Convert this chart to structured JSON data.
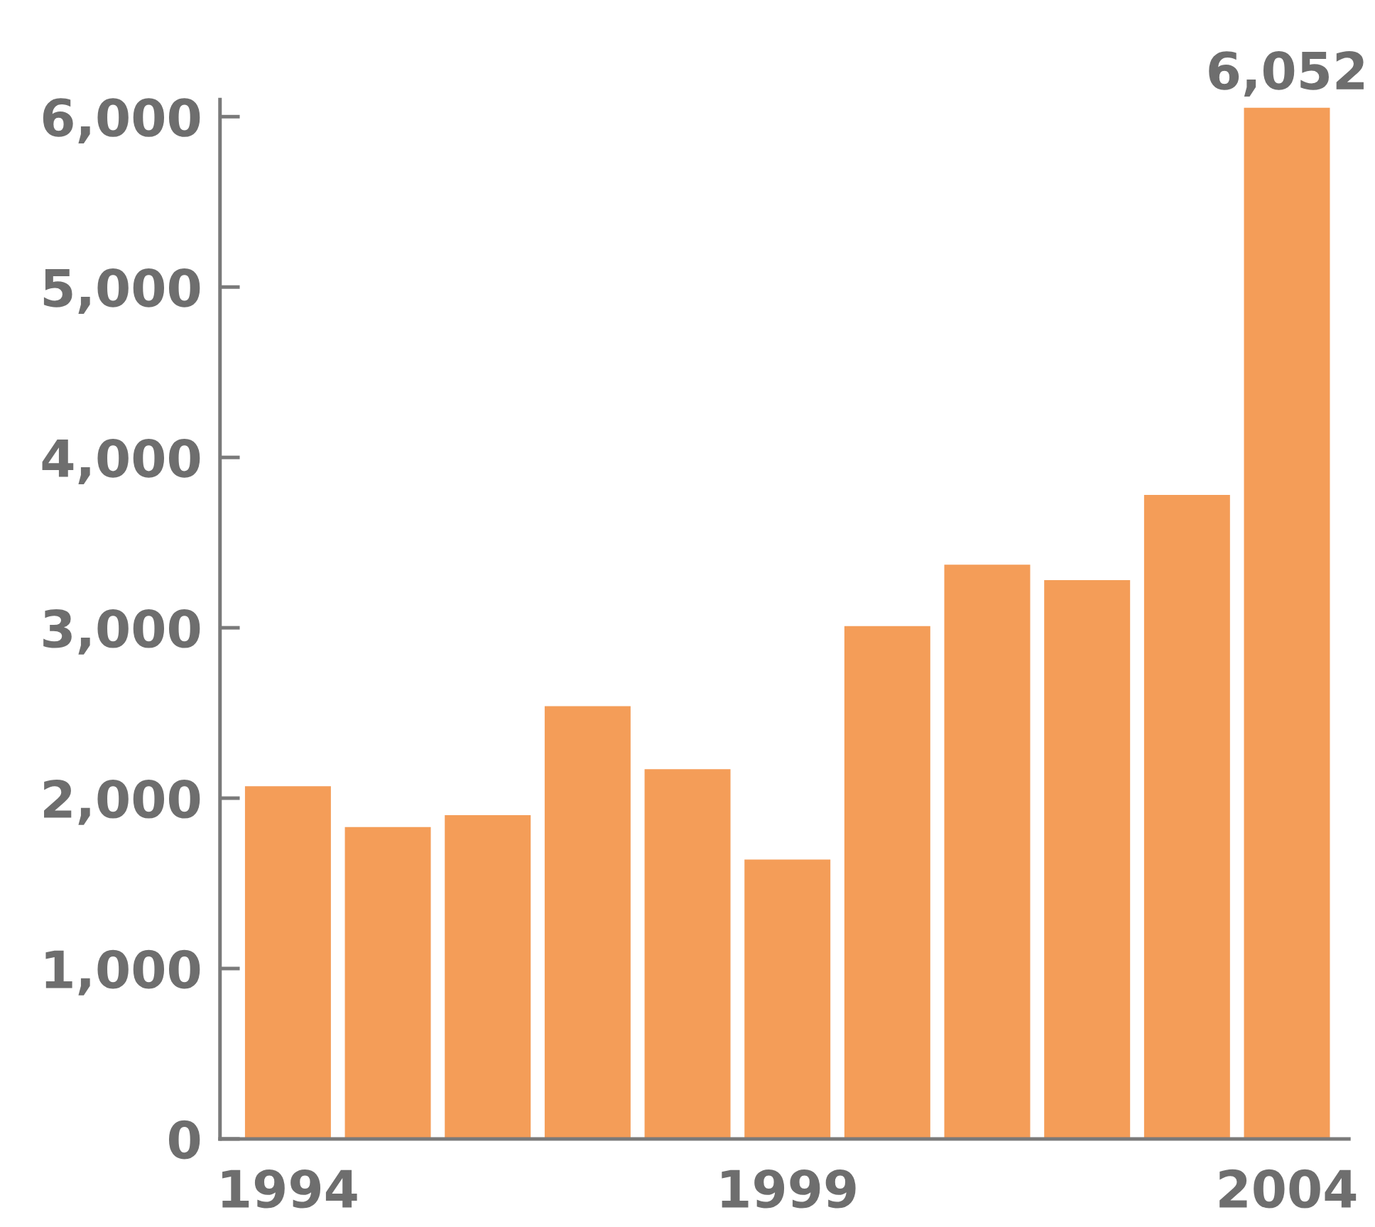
{
  "chart_data": {
    "type": "bar",
    "categories": [
      "1994",
      null,
      null,
      null,
      null,
      "1999",
      null,
      null,
      null,
      null,
      "2004"
    ],
    "values": [
      2070,
      1830,
      1900,
      2540,
      2170,
      1640,
      3010,
      3370,
      3280,
      3780,
      6052
    ],
    "color": "#f49d58",
    "value_labels": [
      null,
      null,
      null,
      null,
      null,
      null,
      null,
      null,
      null,
      null,
      "6,052"
    ],
    "ylim": [
      0,
      6100
    ],
    "yticks": [
      0,
      {
        "value": 1000,
        "label": "1,000"
      },
      {
        "value": 2000,
        "label": "2,000"
      },
      {
        "value": 3000,
        "label": "3,000"
      },
      {
        "value": 4000,
        "label": "4,000"
      },
      {
        "value": 5000,
        "label": "5,000"
      },
      {
        "value": 6000,
        "label": "6,000"
      }
    ]
  }
}
